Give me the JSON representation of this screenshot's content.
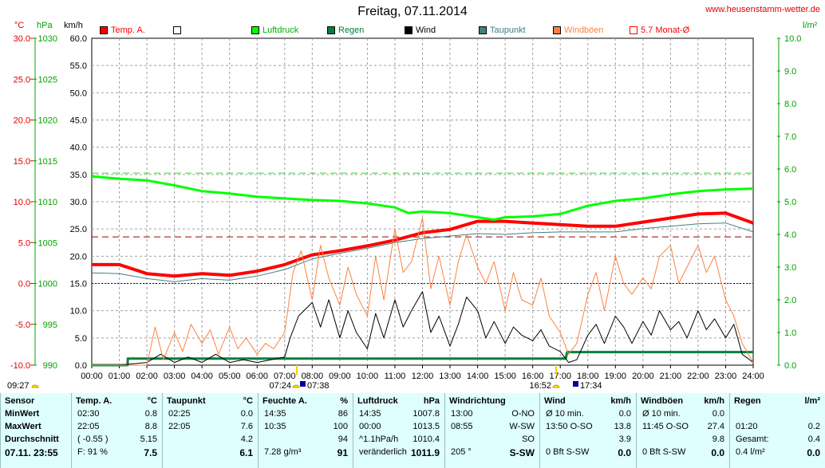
{
  "header": {
    "title": "Freitag, 07.11.2014",
    "site": "www.heusenstamm-wetter.de"
  },
  "units": {
    "temp": "°C",
    "hpa": "hPa",
    "kmh": "km/h",
    "rain": "l/m²"
  },
  "legend": [
    {
      "label": "Temp. A.",
      "color": "#ff0000",
      "type": "fill"
    },
    {
      "label": "",
      "color": "#ffffff",
      "type": "fill"
    },
    {
      "label": "Luftdruck",
      "color": "#00ff00",
      "type": "fill"
    },
    {
      "label": "Regen",
      "color": "#008040",
      "type": "fill"
    },
    {
      "label": "Wind",
      "color": "#000000",
      "type": "fill"
    },
    {
      "label": "Taupunkt",
      "color": "#408080",
      "type": "fill"
    },
    {
      "label": "Windböen",
      "color": "#ff8040",
      "type": "fill"
    },
    {
      "label": "5.7 Monat-Ø",
      "color": "#ff0000",
      "type": "outline"
    }
  ],
  "axes": {
    "temp_ticks": [
      "30.0",
      "25.0",
      "20.0",
      "15.0",
      "10.0",
      "5.0",
      "0.0",
      "-5.0",
      "-10.0"
    ],
    "hpa_ticks": [
      "1030",
      "1025",
      "1020",
      "1015",
      "1010",
      "1005",
      "1000",
      "995",
      "990"
    ],
    "kmh_ticks": [
      "60.0",
      "55.0",
      "50.0",
      "45.0",
      "40.0",
      "35.0",
      "30.0",
      "25.0",
      "20.0",
      "15.0",
      "10.0",
      "5.0",
      "0.0"
    ],
    "rain_ticks": [
      "10.0",
      "9.0",
      "8.0",
      "7.0",
      "6.0",
      "5.0",
      "4.0",
      "3.0",
      "2.0",
      "1.0",
      "0.0"
    ],
    "x_ticks": [
      "00:00",
      "01:00",
      "02:00",
      "03:00",
      "04:00",
      "05:00",
      "06:00",
      "07:00",
      "08:00",
      "09:00",
      "10:00",
      "11:00",
      "12:00",
      "13:00",
      "14:00",
      "15:00",
      "16:00",
      "17:00",
      "18:00",
      "19:00",
      "20:00",
      "21:00",
      "22:00",
      "23:00",
      "24:00"
    ]
  },
  "sun": {
    "rise_label": "07:24",
    "set_label": "16:52",
    "dawn_label": "07:38",
    "dusk_label": "17:34",
    "left_label": "09:27"
  },
  "chart_data": {
    "type": "line",
    "x_unit": "hours",
    "ylim_temp": [
      -10,
      30
    ],
    "ylim_kmh": [
      0,
      60
    ],
    "ylim_hpa": [
      990,
      1030
    ],
    "ylim_rain": [
      0,
      10
    ],
    "reference_lines": {
      "luftdruck_mean_hpa": 1013.5,
      "temp_month_avg": 5.7,
      "zero_temp": 0.0
    },
    "series": [
      {
        "name": "Temp. A.",
        "color": "#ff0000",
        "axis": "temp",
        "x": [
          0,
          1,
          2,
          3,
          4,
          5,
          6,
          7,
          8,
          9,
          10,
          11,
          12,
          13,
          14,
          15,
          16,
          17,
          18,
          19,
          20,
          21,
          22,
          23,
          23.5,
          24
        ],
        "y": [
          2.3,
          2.3,
          1.2,
          0.9,
          1.2,
          1.0,
          1.5,
          2.3,
          3.5,
          4.0,
          4.6,
          5.3,
          6.2,
          6.6,
          7.6,
          7.6,
          7.4,
          7.2,
          7.0,
          7.0,
          7.5,
          8.0,
          8.5,
          8.6,
          8.0,
          7.4
        ]
      },
      {
        "name": "Taupunkt",
        "color": "#408080",
        "axis": "temp",
        "x": [
          0,
          1,
          2,
          3,
          4,
          5,
          6,
          7,
          8,
          9,
          10,
          11,
          12,
          13,
          14,
          15,
          16,
          17,
          18,
          19,
          20,
          21,
          22,
          23,
          24
        ],
        "y": [
          1.3,
          1.2,
          0.6,
          0.2,
          0.6,
          0.4,
          0.9,
          1.7,
          3.0,
          3.7,
          4.3,
          5.0,
          5.5,
          5.8,
          6.1,
          6.0,
          6.2,
          6.3,
          6.3,
          6.3,
          6.7,
          7.0,
          7.3,
          7.4,
          6.3
        ]
      },
      {
        "name": "Luftdruck",
        "color": "#00ff00",
        "axis": "hpa",
        "x": [
          0,
          1,
          2,
          3,
          4,
          5,
          6,
          7,
          8,
          9,
          10,
          11,
          11.5,
          12,
          13,
          14,
          14.6,
          15,
          16,
          17,
          18,
          19,
          20,
          21,
          22,
          23,
          24
        ],
        "y": [
          1013.1,
          1012.8,
          1012.6,
          1012.0,
          1011.3,
          1011.0,
          1010.6,
          1010.4,
          1010.2,
          1010.1,
          1009.8,
          1009.3,
          1008.6,
          1008.8,
          1008.6,
          1008.1,
          1007.8,
          1008.1,
          1008.2,
          1008.5,
          1009.5,
          1010.1,
          1010.4,
          1010.9,
          1011.3,
          1011.5,
          1011.6
        ]
      },
      {
        "name": "Regen",
        "color": "#008040",
        "axis": "rain",
        "x": [
          0,
          1.3,
          1.31,
          17.2,
          17.25,
          24
        ],
        "y": [
          0,
          0,
          0.2,
          0.2,
          0.4,
          0.4
        ]
      },
      {
        "name": "Wind",
        "color": "#000000",
        "axis": "kmh",
        "x": [
          0,
          1,
          2,
          2.5,
          3,
          3.5,
          4,
          4.5,
          5,
          5.5,
          6,
          6.5,
          7,
          7.2,
          7.5,
          8,
          8.3,
          8.6,
          9,
          9.3,
          9.6,
          10,
          10.3,
          10.6,
          11,
          11.3,
          11.6,
          12,
          12.3,
          12.6,
          13,
          13.3,
          13.6,
          14,
          14.3,
          14.6,
          15,
          15.3,
          15.6,
          16,
          16.3,
          16.6,
          17,
          17.3,
          17.6,
          18,
          18.3,
          18.6,
          19,
          19.3,
          19.6,
          20,
          20.3,
          20.6,
          21,
          21.3,
          21.6,
          22,
          22.3,
          22.6,
          23,
          23.3,
          23.6,
          24
        ],
        "y": [
          0,
          0,
          0.5,
          2.0,
          0.5,
          1.5,
          0.5,
          2.0,
          0.5,
          1.0,
          0.5,
          1.0,
          1.5,
          5.0,
          9.0,
          11.5,
          7.0,
          12.0,
          5.0,
          10.0,
          6.0,
          3.0,
          9.5,
          5.0,
          12.0,
          7.0,
          10.0,
          13.5,
          6.0,
          9.0,
          3.5,
          7.5,
          12.5,
          10.0,
          5.0,
          8.0,
          4.0,
          7.0,
          5.5,
          4.5,
          6.5,
          3.5,
          2.5,
          0.5,
          1.0,
          5.5,
          7.5,
          4.0,
          9.0,
          7.0,
          4.0,
          8.0,
          5.5,
          10.0,
          6.5,
          8.0,
          5.0,
          10.0,
          6.5,
          8.5,
          5.0,
          7.5,
          2.0,
          0.5
        ]
      },
      {
        "name": "Windböen",
        "color": "#ff8040",
        "axis": "kmh",
        "x": [
          0,
          1,
          2,
          2.3,
          2.6,
          3,
          3.3,
          3.6,
          4,
          4.3,
          4.6,
          5,
          5.3,
          5.6,
          6,
          6.3,
          6.6,
          7,
          7.3,
          7.6,
          8,
          8.3,
          8.6,
          9,
          9.3,
          9.6,
          10,
          10.3,
          10.6,
          11,
          11.3,
          11.6,
          12,
          12.3,
          12.6,
          13,
          13.3,
          13.6,
          14,
          14.3,
          14.6,
          15,
          15.3,
          15.6,
          16,
          16.3,
          16.6,
          17,
          17.3,
          17.6,
          18,
          18.3,
          18.6,
          19,
          19.3,
          19.6,
          20,
          20.3,
          20.6,
          21,
          21.3,
          21.6,
          22,
          22.3,
          22.6,
          23,
          23.3,
          23.6,
          24
        ],
        "y": [
          0,
          0,
          0,
          7.0,
          1.0,
          6.0,
          2.5,
          7.5,
          4.0,
          6.5,
          2.0,
          7.0,
          3.0,
          5.0,
          2.0,
          4.0,
          3.0,
          6.0,
          17.0,
          21.0,
          12.0,
          22.0,
          16.0,
          11.0,
          18.0,
          13.0,
          9.0,
          20.0,
          12.0,
          25.0,
          17.0,
          19.0,
          27.0,
          14.0,
          20.0,
          11.0,
          19.0,
          24.0,
          18.0,
          15.0,
          19.0,
          10.0,
          17.0,
          12.0,
          11.0,
          16.0,
          9.0,
          6.0,
          2.0,
          4.0,
          13.0,
          17.0,
          10.0,
          20.0,
          15.0,
          13.0,
          16.0,
          14.0,
          20.0,
          22.0,
          15.0,
          18.0,
          22.0,
          17.0,
          20.0,
          12.0,
          9.0,
          4.0,
          0.5
        ]
      }
    ]
  },
  "table": {
    "columns": [
      {
        "header": "Sensor",
        "unit": "",
        "rows": [
          "MinWert",
          "MaxWert",
          "Durchschnitt",
          "07.11. 23:55"
        ]
      },
      {
        "header": "Temp. A.",
        "unit": "°C",
        "rows": [
          [
            "02:30",
            "0.8"
          ],
          [
            "22:05",
            "8.8"
          ],
          [
            "( -0.55 )",
            "5.15"
          ],
          [
            "F: 91 %",
            "7.5"
          ]
        ]
      },
      {
        "header": "Taupunkt",
        "unit": "°C",
        "rows": [
          [
            "02:25",
            "0.0"
          ],
          [
            "22:05",
            "7.6"
          ],
          [
            "",
            "4.2"
          ],
          [
            "",
            "6.1"
          ]
        ]
      },
      {
        "header": "Feuchte A.",
        "unit": "%",
        "rows": [
          [
            "14:35",
            "86"
          ],
          [
            "10:35",
            "100"
          ],
          [
            "",
            "94"
          ],
          [
            "7.28 g/m³",
            "91"
          ]
        ]
      },
      {
        "header": "Luftdruck",
        "unit": "hPa",
        "rows": [
          [
            "14:35",
            "1007.8"
          ],
          [
            "00:00",
            "1013.5"
          ],
          [
            "^1.1hPa/h",
            "1010.4"
          ],
          [
            "veränderlich",
            "1011.9"
          ]
        ]
      },
      {
        "header": "Windrichtung",
        "unit": "",
        "rows": [
          [
            "13:00",
            "O-NO"
          ],
          [
            "08:55",
            "W-SW"
          ],
          [
            "",
            "SO"
          ],
          [
            "205 °",
            "S-SW"
          ]
        ]
      },
      {
        "header": "Wind",
        "unit": "km/h",
        "rows": [
          [
            "Ø 10 min.",
            "0.0"
          ],
          [
            "13:50    O-SO",
            "13.8"
          ],
          [
            "",
            "3.9"
          ],
          [
            "0 Bft S-SW",
            "0.0"
          ]
        ]
      },
      {
        "header": "Windböen",
        "unit": "km/h",
        "rows": [
          [
            "Ø 10 min.",
            "0.0"
          ],
          [
            "11:45    O-SO",
            "27.4"
          ],
          [
            "",
            "9.8"
          ],
          [
            "0 Bft S-SW",
            "0.0"
          ]
        ]
      },
      {
        "header": "Regen",
        "unit": "l/m²",
        "rows": [
          [
            "",
            ""
          ],
          [
            "01:20",
            "0.2"
          ],
          [
            "Gesamt:",
            "0.4"
          ],
          [
            "0.4 l/m²",
            "0.0"
          ]
        ]
      }
    ]
  }
}
